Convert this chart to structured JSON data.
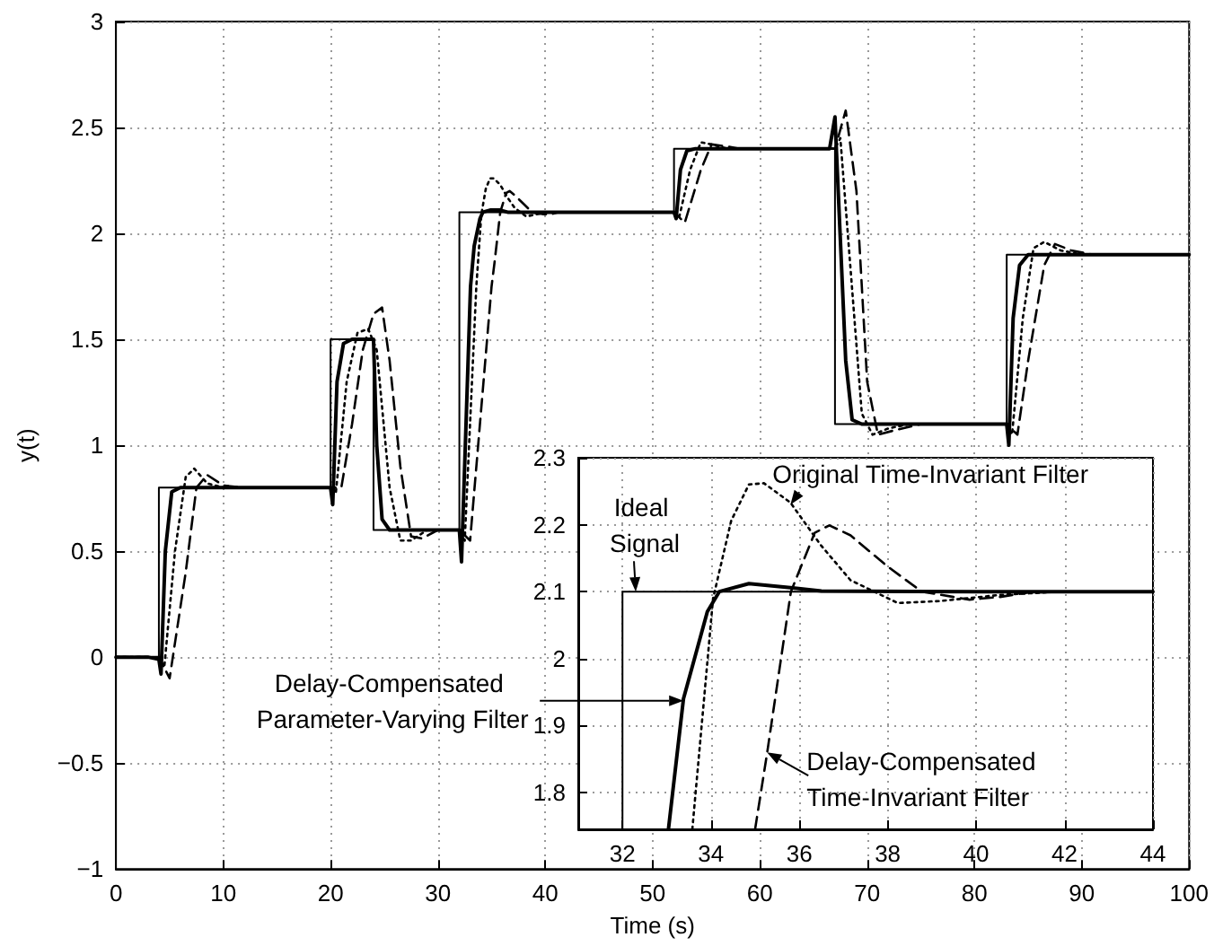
{
  "chart_data": [
    {
      "type": "line",
      "xlabel": "Time (s)",
      "ylabel": "y(t)",
      "xlim": [
        0,
        100
      ],
      "xticks": [
        0,
        10,
        20,
        30,
        40,
        50,
        60,
        70,
        80,
        90,
        100
      ],
      "ylim": [
        -1,
        3
      ],
      "yticks": [
        -1,
        -0.5,
        0,
        0.5,
        1,
        1.5,
        2,
        2.5,
        3
      ],
      "grid": true,
      "series": [
        {
          "color": "#000000",
          "line_style": "solid",
          "x": [
            0,
            4,
            4,
            20,
            20,
            24,
            24,
            32,
            32,
            52,
            52,
            67,
            67,
            83,
            83,
            100
          ],
          "values": [
            0,
            0,
            0.8,
            0.8,
            1.5,
            1.5,
            0.6,
            0.6,
            2.1,
            2.1,
            2.4,
            2.4,
            1.1,
            1.1,
            1.9,
            1.9
          ]
        },
        {
          "color": "#000000",
          "line_style": "solid",
          "x": [
            0,
            3,
            4,
            4.2,
            4.6,
            5.2,
            6,
            20,
            20.2,
            20.6,
            21.2,
            22,
            24,
            24.3,
            24.8,
            25.5,
            32,
            32.2,
            33.04,
            33.38,
            33.92,
            34.19,
            34.86,
            35.8,
            36.5,
            40,
            52,
            52.2,
            52.6,
            53.2,
            54,
            66.5,
            67,
            67.3,
            68,
            68.6,
            69.5,
            83,
            83.2,
            83.6,
            84.2,
            85,
            100
          ],
          "values": [
            0,
            0,
            -0.01,
            -0.08,
            0.5,
            0.78,
            0.8,
            0.8,
            0.72,
            1.3,
            1.48,
            1.5,
            1.5,
            1.0,
            0.65,
            0.6,
            0.6,
            0.45,
            1.75,
            1.94,
            2.07,
            2.1,
            2.11,
            2.11,
            2.1,
            2.1,
            2.1,
            2.07,
            2.3,
            2.39,
            2.4,
            2.4,
            2.55,
            2.2,
            1.4,
            1.12,
            1.1,
            1.1,
            1.0,
            1.6,
            1.85,
            1.9,
            1.9
          ]
        },
        {
          "color": "#000000",
          "line_style": "dotted",
          "x": [
            0,
            4,
            4.5,
            5.5,
            6.5,
            7.3,
            8.5,
            10,
            20,
            20.5,
            21.5,
            22.5,
            23.5,
            24.3,
            25.5,
            26.5,
            27.5,
            29,
            32,
            32.5,
            33.58,
            34.05,
            34.46,
            34.86,
            35.2,
            35.8,
            36.48,
            37.16,
            38.23,
            39.18,
            40.53,
            41.88,
            52,
            52.5,
            53.5,
            54.5,
            55.5,
            57,
            67,
            67.5,
            68.5,
            69.5,
            70.5,
            72,
            74,
            83,
            83.5,
            84.5,
            85.5,
            86.5,
            88,
            90,
            100
          ],
          "values": [
            0,
            0,
            -0.05,
            0.5,
            0.85,
            0.89,
            0.82,
            0.8,
            0.8,
            0.78,
            1.3,
            1.53,
            1.55,
            1.45,
            0.8,
            0.55,
            0.55,
            0.6,
            0.6,
            0.55,
            1.75,
            2.09,
            2.21,
            2.26,
            2.26,
            2.23,
            2.17,
            2.12,
            2.08,
            2.09,
            2.1,
            2.1,
            2.1,
            2.08,
            2.3,
            2.43,
            2.42,
            2.4,
            2.4,
            2.45,
            1.8,
            1.15,
            1.05,
            1.08,
            1.1,
            1.1,
            1.05,
            1.6,
            1.93,
            1.96,
            1.92,
            1.9,
            1.9
          ]
        },
        {
          "color": "#000000",
          "line_style": "dashed",
          "x": [
            0,
            4,
            5,
            6.5,
            7.5,
            8.5,
            10,
            12,
            20,
            21,
            22,
            23,
            24,
            24.8,
            25.5,
            26.5,
            27.5,
            28.5,
            30,
            32,
            33,
            35,
            35.27,
            35.81,
            36.35,
            36.68,
            37.16,
            37.97,
            38.77,
            39.85,
            40.53,
            41.2,
            44,
            52,
            53,
            54.5,
            55.5,
            57,
            58,
            67,
            68,
            69,
            70,
            71,
            72.5,
            75,
            83,
            84,
            85,
            86.5,
            87.5,
            89,
            91,
            100
          ],
          "values": [
            0,
            0,
            -0.1,
            0.4,
            0.8,
            0.86,
            0.81,
            0.8,
            0.8,
            0.8,
            1.1,
            1.45,
            1.62,
            1.65,
            1.4,
            0.9,
            0.57,
            0.56,
            0.6,
            0.6,
            0.55,
            1.75,
            1.86,
            2.1,
            2.19,
            2.2,
            2.18,
            2.14,
            2.1,
            2.09,
            2.09,
            2.1,
            2.1,
            2.1,
            2.05,
            2.3,
            2.42,
            2.41,
            2.4,
            2.4,
            2.58,
            2.2,
            1.3,
            1.05,
            1.07,
            1.1,
            1.1,
            1.05,
            1.4,
            1.85,
            1.95,
            1.92,
            1.9,
            1.9
          ]
        }
      ]
    },
    {
      "type": "line",
      "xlim": [
        31,
        44
      ],
      "xticks": [
        32,
        34,
        36,
        38,
        40,
        42,
        44
      ],
      "ylim": [
        1.745,
        2.3
      ],
      "yticks": [
        1.8,
        1.9,
        2,
        2.1,
        2.2,
        2.3
      ],
      "grid": true,
      "series": [
        {
          "color": "#000000",
          "line_style": "solid",
          "x": [
            32,
            32,
            44
          ],
          "values": [
            1.745,
            2.1,
            2.1
          ]
        },
        {
          "color": "#000000",
          "line_style": "solid",
          "x": [
            33.04,
            33.38,
            33.92,
            34.19,
            34.86,
            35.8,
            36.5,
            40,
            44
          ],
          "values": [
            1.745,
            1.94,
            2.07,
            2.1,
            2.112,
            2.106,
            2.101,
            2.1,
            2.1
          ]
        },
        {
          "color": "#000000",
          "line_style": "dotted",
          "x": [
            33.58,
            34.05,
            34.46,
            34.86,
            35.2,
            35.8,
            36.48,
            37.16,
            38.23,
            39.18,
            40.53,
            41.88,
            44
          ],
          "values": [
            1.745,
            2.09,
            2.206,
            2.26,
            2.262,
            2.233,
            2.17,
            2.117,
            2.083,
            2.086,
            2.095,
            2.1,
            2.1
          ]
        },
        {
          "color": "#000000",
          "line_style": "dashed",
          "x": [
            35,
            35.27,
            35.81,
            36.35,
            36.68,
            37.16,
            37.97,
            38.77,
            39.85,
            40.53,
            41.2,
            44
          ],
          "values": [
            1.745,
            1.858,
            2.1,
            2.188,
            2.199,
            2.184,
            2.139,
            2.1,
            2.088,
            2.092,
            2.099,
            2.1
          ]
        }
      ],
      "annotations": [
        {
          "text": "Ideal Signal",
          "x": 32.3,
          "y": 2.1
        },
        {
          "text": "Original Time-Invariant Filter",
          "x": 35.8,
          "y": 2.23
        },
        {
          "text": "Delay-Compensated Parameter-Varying Filter",
          "x": 33.38,
          "y": 1.937
        },
        {
          "text": "Delay-Compensated Time-Invariant Filter",
          "x": 35.27,
          "y": 1.86
        }
      ]
    }
  ]
}
